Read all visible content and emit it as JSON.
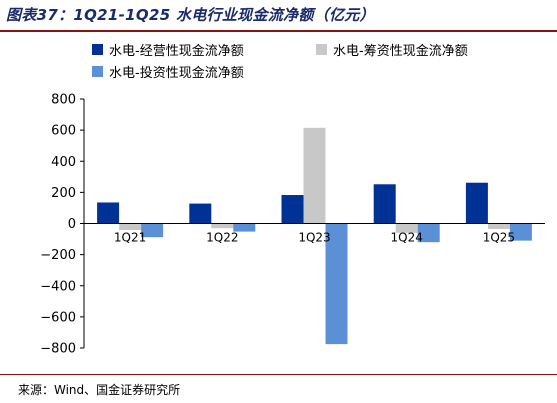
{
  "title": "图表37：1Q21-1Q25 水电行业现金流净额（亿元）",
  "source": "来源：Wind、国金证券研究所",
  "colors": {
    "operating": "#003296",
    "financing": "#c8c8c8",
    "investing": "#5b8fd6",
    "title": "#1a2a6c",
    "rule": "#8a1414"
  },
  "chart_data": {
    "type": "bar",
    "categories": [
      "1Q21",
      "1Q22",
      "1Q23",
      "1Q24",
      "1Q25"
    ],
    "series": [
      {
        "name": "水电-经营性现金流净额",
        "color": "#003296",
        "values": [
          135,
          128,
          183,
          252,
          262
        ]
      },
      {
        "name": "水电-筹资性现金流净额",
        "color": "#c8c8c8",
        "values": [
          -42,
          -30,
          615,
          -60,
          -35
        ]
      },
      {
        "name": "水电-投资性现金流净额",
        "color": "#5b8fd6",
        "values": [
          -88,
          -52,
          -775,
          -120,
          -110
        ]
      }
    ],
    "yticks": [
      800,
      600,
      400,
      200,
      0,
      -200,
      -400,
      -600,
      -800
    ],
    "ytick_labels": [
      "800",
      "600",
      "400",
      "200",
      "0",
      "−200",
      "−400",
      "−600",
      "−800"
    ],
    "ylim": [
      -800,
      800
    ],
    "legend_position": "top",
    "grid": false
  }
}
